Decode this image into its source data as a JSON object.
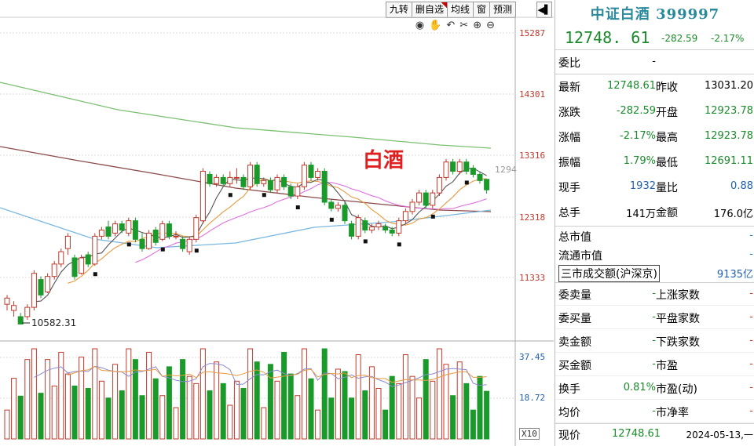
{
  "toolbar": {
    "buttons": [
      "九转",
      "删自选",
      "均线",
      "窗",
      "预测"
    ],
    "collapse": "◀▌"
  },
  "chart_title": "白酒",
  "price_axis": [
    "15287",
    "14301",
    "13316",
    "12318",
    "11333"
  ],
  "volume_axis": [
    "37.45",
    "18.72",
    "X10"
  ],
  "low_marker": "10582.31",
  "right_marker": "1294",
  "header": {
    "name": "中证白酒",
    "code": "399997",
    "price": "12748. 61",
    "change": "-282.59",
    "change_pct": "-2.17%"
  },
  "quote": {
    "weibi_label": "委比",
    "weibi_value": "-",
    "rows": [
      {
        "l1": "最新",
        "v1": "12748.61",
        "c1": "green",
        "l2": "昨收",
        "v2": "13031.20",
        "c2": "black"
      },
      {
        "l1": "涨跌",
        "v1": "-282.59",
        "c1": "green",
        "l2": "开盘",
        "v2": "12923.78",
        "c2": "green"
      },
      {
        "l1": "涨幅",
        "v1": "-2.17%",
        "c1": "green",
        "l2": "最高",
        "v2": "12923.78",
        "c2": "green"
      },
      {
        "l1": "振幅",
        "v1": "1.79%",
        "c1": "green",
        "l2": "最低",
        "v2": "12691.11",
        "c2": "green"
      },
      {
        "l1": "现手",
        "v1": "1932",
        "c1": "blue",
        "l2": "量比",
        "v2": "0.88",
        "c2": "blue"
      },
      {
        "l1": "总手",
        "v1": "141万",
        "c1": "black",
        "l2": "金额",
        "v2": "176.0亿",
        "c2": "black"
      }
    ]
  },
  "market": {
    "total_cap_label": "总市值",
    "total_cap_value": "-",
    "float_cap_label": "流通市值",
    "float_cap_value": "-",
    "three_market_label": "三市成交额(沪深京)",
    "three_market_value": "9135亿"
  },
  "orders": [
    {
      "l1": "委卖量",
      "v1": "-",
      "l2": "上涨家数",
      "v2": "-"
    },
    {
      "l1": "委买量",
      "v1": "-",
      "l2": "平盘家数",
      "v2": "-"
    },
    {
      "l1": "卖金额",
      "v1": "-",
      "l2": "下跌家数",
      "v2": "-"
    },
    {
      "l1": "买金额",
      "v1": "-",
      "l2": "市盈",
      "v2": "-"
    },
    {
      "l1": "换手",
      "v1": "0.81%",
      "l2": "市盈(动)",
      "v2": "-"
    },
    {
      "l1": "均价",
      "v1": "-",
      "l2": "市净率",
      "v2": "-"
    }
  ],
  "footer": {
    "label": "现价",
    "value": "12748.61",
    "date": "2024-05-13,一"
  },
  "colors": {
    "up": "#c0392b",
    "down": "#1a9a2a",
    "ma5": "#555555",
    "ma10": "#e89a40",
    "ma20": "#e070e0",
    "ma60": "#7ab8e0",
    "ma120": "#8b4a4a",
    "ma250": "#7ac070"
  },
  "chart_data": {
    "type": "candlestick",
    "price_range": [
      10582.31,
      15287
    ],
    "candles": [
      [
        10900,
        11000,
        10800,
        11050
      ],
      [
        10800,
        10880,
        10700,
        10950
      ],
      [
        10700,
        10580,
        10580,
        10760
      ],
      [
        10700,
        10850,
        10650,
        10900
      ],
      [
        10850,
        11400,
        10800,
        11450
      ],
      [
        11300,
        11050,
        11000,
        11350
      ],
      [
        11100,
        11350,
        11080,
        11400
      ],
      [
        11350,
        11550,
        11300,
        11600
      ],
      [
        11550,
        11750,
        11500,
        11800
      ],
      [
        11800,
        12000,
        11700,
        12050
      ],
      [
        11650,
        11350,
        11300,
        11700
      ],
      [
        11400,
        11650,
        11380,
        11700
      ],
      [
        11700,
        11550,
        11500,
        11750
      ],
      [
        11550,
        12000,
        11520,
        12050
      ],
      [
        12000,
        12100,
        11950,
        12150
      ],
      [
        12150,
        12000,
        11950,
        12250
      ],
      [
        12050,
        12200,
        12000,
        12250
      ],
      [
        12200,
        12100,
        12050,
        12250
      ],
      [
        12050,
        12250,
        12000,
        12300
      ],
      [
        12250,
        11950,
        11900,
        12300
      ],
      [
        11950,
        11800,
        11750,
        12050
      ],
      [
        11800,
        12050,
        11780,
        12100
      ],
      [
        12100,
        11900,
        11850,
        12150
      ],
      [
        11950,
        12200,
        11920,
        12250
      ],
      [
        12200,
        12000,
        11950,
        12250
      ],
      [
        12000,
        12000,
        11950,
        12080
      ],
      [
        11950,
        11800,
        11750,
        12000
      ],
      [
        11750,
        11950,
        11700,
        12000
      ],
      [
        11950,
        12300,
        11900,
        12350
      ],
      [
        12250,
        13050,
        12200,
        13100
      ],
      [
        13000,
        12850,
        12800,
        13050
      ],
      [
        12850,
        12950,
        12800,
        13000
      ],
      [
        12950,
        12850,
        12800,
        13000
      ],
      [
        12850,
        12950,
        12800,
        13050
      ],
      [
        12950,
        12950,
        12850,
        13100
      ],
      [
        12950,
        12800,
        12750,
        13000
      ],
      [
        12800,
        13150,
        12750,
        13200
      ],
      [
        13150,
        12850,
        12800,
        13200
      ],
      [
        12850,
        12900,
        12800,
        12950
      ],
      [
        12900,
        12750,
        12700,
        12950
      ],
      [
        12750,
        12950,
        12700,
        13000
      ],
      [
        12950,
        12800,
        12750,
        13000
      ],
      [
        12800,
        12650,
        12600,
        12850
      ],
      [
        12650,
        12800,
        12600,
        12850
      ],
      [
        12800,
        13150,
        12750,
        13200
      ],
      [
        13150,
        12950,
        12900,
        13200
      ],
      [
        12950,
        13050,
        12900,
        13100
      ],
      [
        13050,
        12550,
        12500,
        13100
      ],
      [
        12550,
        12450,
        12400,
        12600
      ],
      [
        12450,
        12500,
        12400,
        12550
      ],
      [
        12500,
        12250,
        12200,
        12550
      ],
      [
        12200,
        12000,
        11950,
        12250
      ],
      [
        12000,
        12300,
        11950,
        12350
      ],
      [
        12250,
        12100,
        12050,
        12300
      ],
      [
        12100,
        12150,
        12050,
        12200
      ],
      [
        12150,
        12200,
        12100,
        12250
      ],
      [
        12150,
        12100,
        12050,
        12200
      ],
      [
        12100,
        12050,
        12000,
        12150
      ],
      [
        12050,
        12250,
        12000,
        12300
      ],
      [
        12250,
        12400,
        12200,
        12450
      ],
      [
        12400,
        12550,
        12350,
        12600
      ],
      [
        12550,
        12700,
        12500,
        12750
      ],
      [
        12700,
        12500,
        12450,
        12750
      ],
      [
        12500,
        12700,
        12450,
        12750
      ],
      [
        12700,
        12950,
        12650,
        13000
      ],
      [
        12950,
        13200,
        12900,
        13250
      ],
      [
        13200,
        13050,
        13000,
        13250
      ],
      [
        13050,
        13200,
        13000,
        13250
      ],
      [
        13200,
        13050,
        13000,
        13250
      ],
      [
        13100,
        13000,
        12950,
        13150
      ],
      [
        13000,
        12900,
        12850,
        13050
      ],
      [
        12920,
        12750,
        12690,
        12920
      ]
    ],
    "volume_range": [
      0,
      37.45
    ]
  }
}
